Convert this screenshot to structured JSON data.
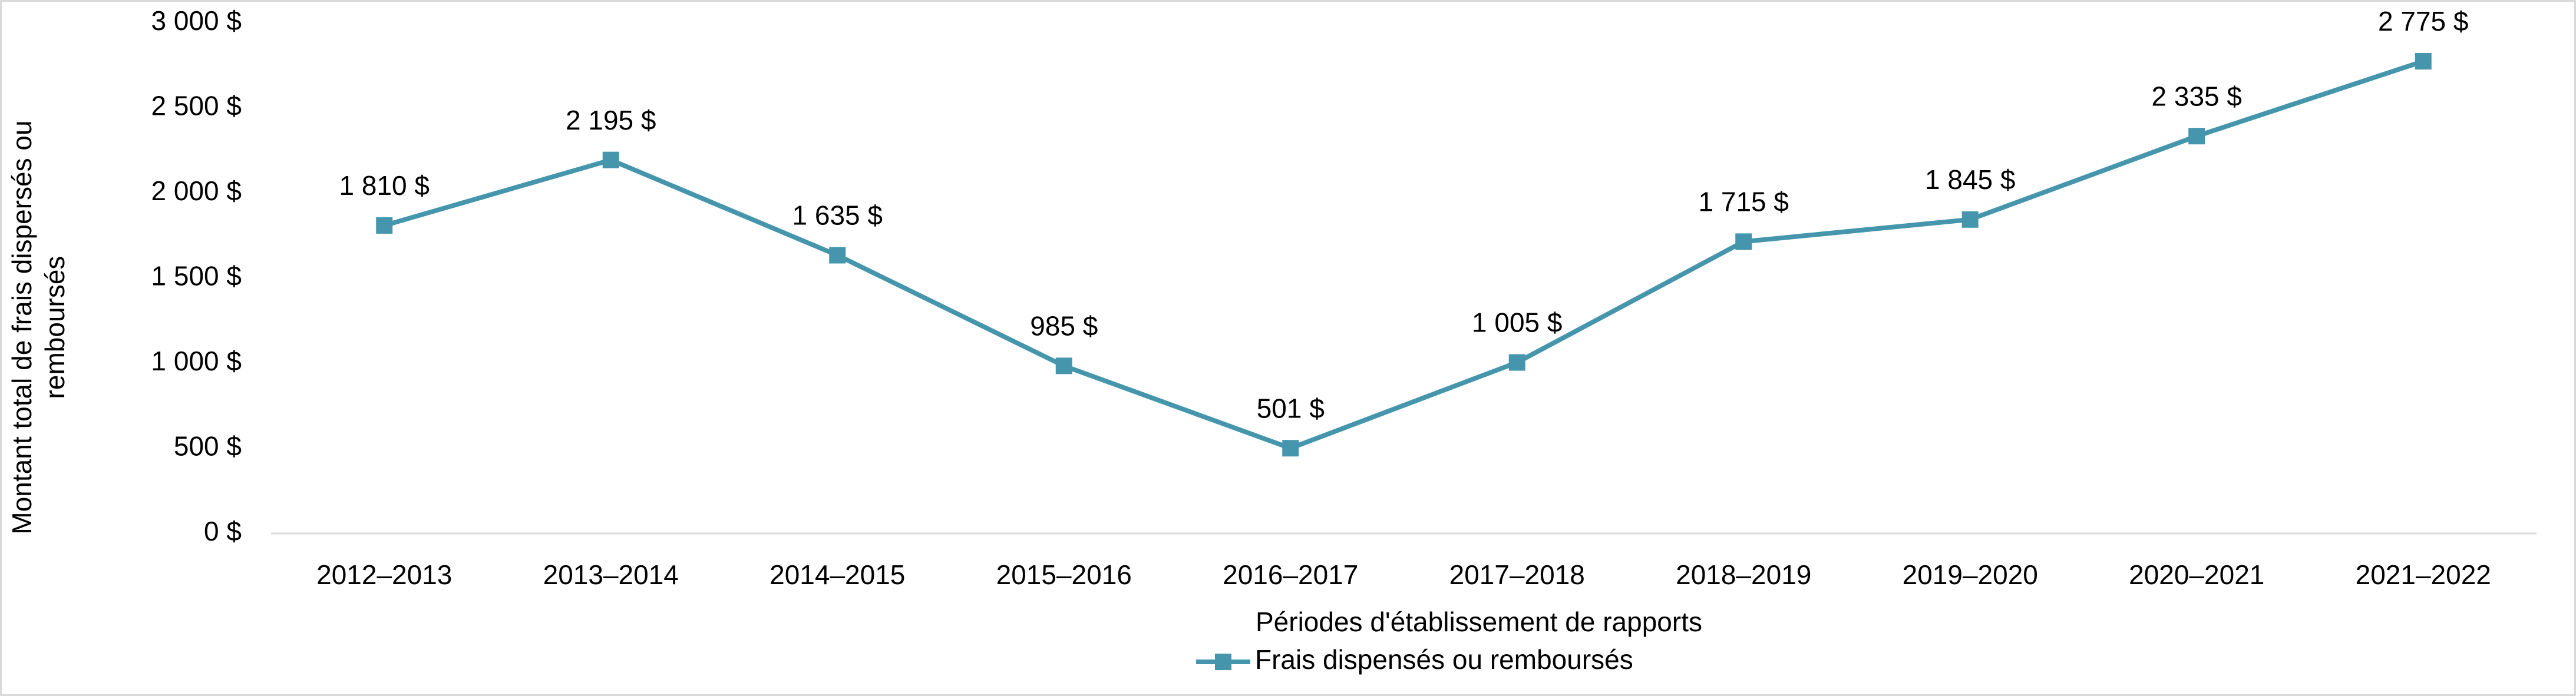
{
  "chart_data": {
    "type": "line",
    "x_label": "Périodes d'établissement de rapports",
    "y_label": "Montant total de frais dispersés ou remboursés",
    "categories": [
      "2012–2013",
      "2013–2014",
      "2014–2015",
      "2015–2016",
      "2016–2017",
      "2017–2018",
      "2018–2019",
      "2019–2020",
      "2020–2021",
      "2021–2022"
    ],
    "series": [
      {
        "name": "Frais dispensés ou remboursés",
        "color": "#4596ad",
        "values": [
          1810,
          2195,
          1635,
          985,
          501,
          1005,
          1715,
          1845,
          2335,
          2775
        ],
        "value_labels": [
          "1 810 $",
          "2 195 $",
          "1 635 $",
          "985 $",
          "501 $",
          "1 005 $",
          "1 715 $",
          "1 845 $",
          "2 335 $",
          "2 775 $"
        ]
      }
    ],
    "ylim": [
      0,
      3000
    ],
    "yticks": [
      {
        "value": 0,
        "label": "0 $"
      },
      {
        "value": 500,
        "label": "500 $"
      },
      {
        "value": 1000,
        "label": "1 000 $"
      },
      {
        "value": 1500,
        "label": "1 500 $"
      },
      {
        "value": 2000,
        "label": "2 000 $"
      },
      {
        "value": 2500,
        "label": "2 500 $"
      },
      {
        "value": 3000,
        "label": "3 000 $"
      }
    ],
    "grid": false,
    "legend": "bottom"
  }
}
